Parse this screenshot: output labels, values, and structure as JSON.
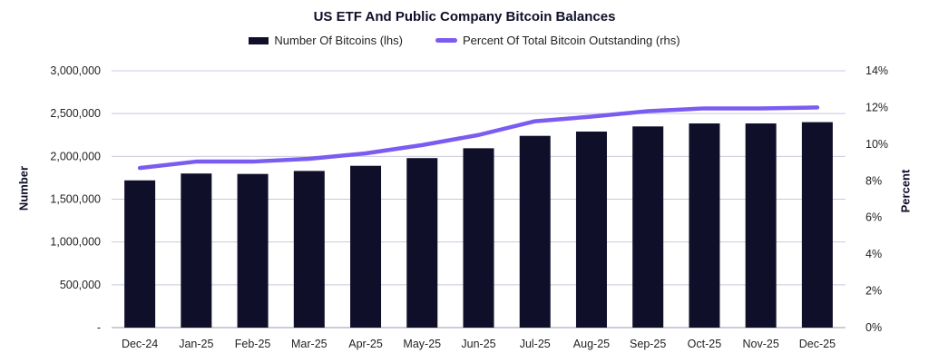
{
  "chart_data": {
    "type": "bar",
    "title": "US ETF And Public Company Bitcoin Balances",
    "xlabel": "",
    "ylabel": "Number",
    "y2label": "Percent",
    "categories": [
      "Dec-24",
      "Jan-25",
      "Feb-25",
      "Mar-25",
      "Apr-25",
      "May-25",
      "Jun-25",
      "Jul-25",
      "Aug-25",
      "Sep-25",
      "Oct-25",
      "Nov-25",
      "Dec-25"
    ],
    "series": [
      {
        "name": "Number Of Bitcoins (lhs)",
        "type": "bar",
        "axis": "left",
        "color": "#0f0f2a",
        "values": [
          1720000,
          1800000,
          1795000,
          1830000,
          1890000,
          1980000,
          2095000,
          2240000,
          2290000,
          2350000,
          2385000,
          2385000,
          2400000
        ]
      },
      {
        "name": "Percent Of Total Bitcoin Outstanding (rhs)",
        "type": "line",
        "axis": "right",
        "color": "#7b5cf0",
        "values": [
          8.7,
          9.05,
          9.05,
          9.2,
          9.5,
          9.95,
          10.5,
          11.25,
          11.5,
          11.8,
          11.95,
          11.95,
          12.0
        ]
      }
    ],
    "ylim": [
      0,
      3000000
    ],
    "y2lim": [
      0,
      14
    ],
    "yticks": [
      "-",
      "500,000",
      "1,000,000",
      "1,500,000",
      "2,000,000",
      "2,500,000",
      "3,000,000"
    ],
    "y2ticks": [
      "0%",
      "2%",
      "4%",
      "6%",
      "8%",
      "10%",
      "12%",
      "14%"
    ],
    "grid": true,
    "legend": "top-center"
  }
}
